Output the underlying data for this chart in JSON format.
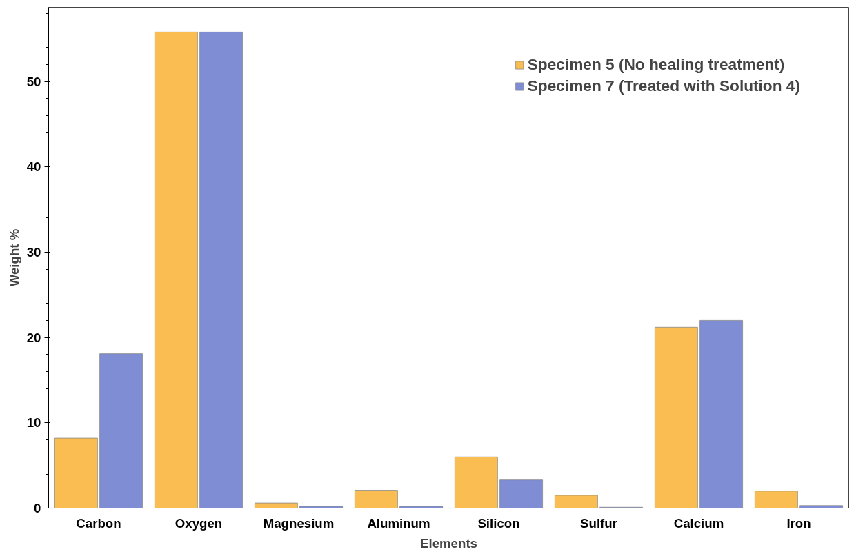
{
  "chart_data": {
    "type": "bar",
    "xlabel": "Elements",
    "ylabel": "Weight %",
    "categories": [
      "Carbon",
      "Oxygen",
      "Magnesium",
      "Aluminum",
      "Silicon",
      "Sulfur",
      "Calcium",
      "Iron"
    ],
    "series": [
      {
        "name": "Specimen 5 (No healing treatment)",
        "color": "#f9bd52",
        "values": [
          8.2,
          55.8,
          0.6,
          2.1,
          6.0,
          1.5,
          21.2,
          2.0
        ]
      },
      {
        "name": "Specimen 7 (Treated with Solution 4)",
        "color": "#7f8dd4",
        "values": [
          18.1,
          55.8,
          0.2,
          0.2,
          3.3,
          0.1,
          22.0,
          0.3
        ]
      }
    ],
    "ylim": [
      0,
      58.7
    ],
    "yticks": [
      0,
      10,
      20,
      30,
      40,
      50
    ],
    "grid": false,
    "legend": "top right"
  }
}
